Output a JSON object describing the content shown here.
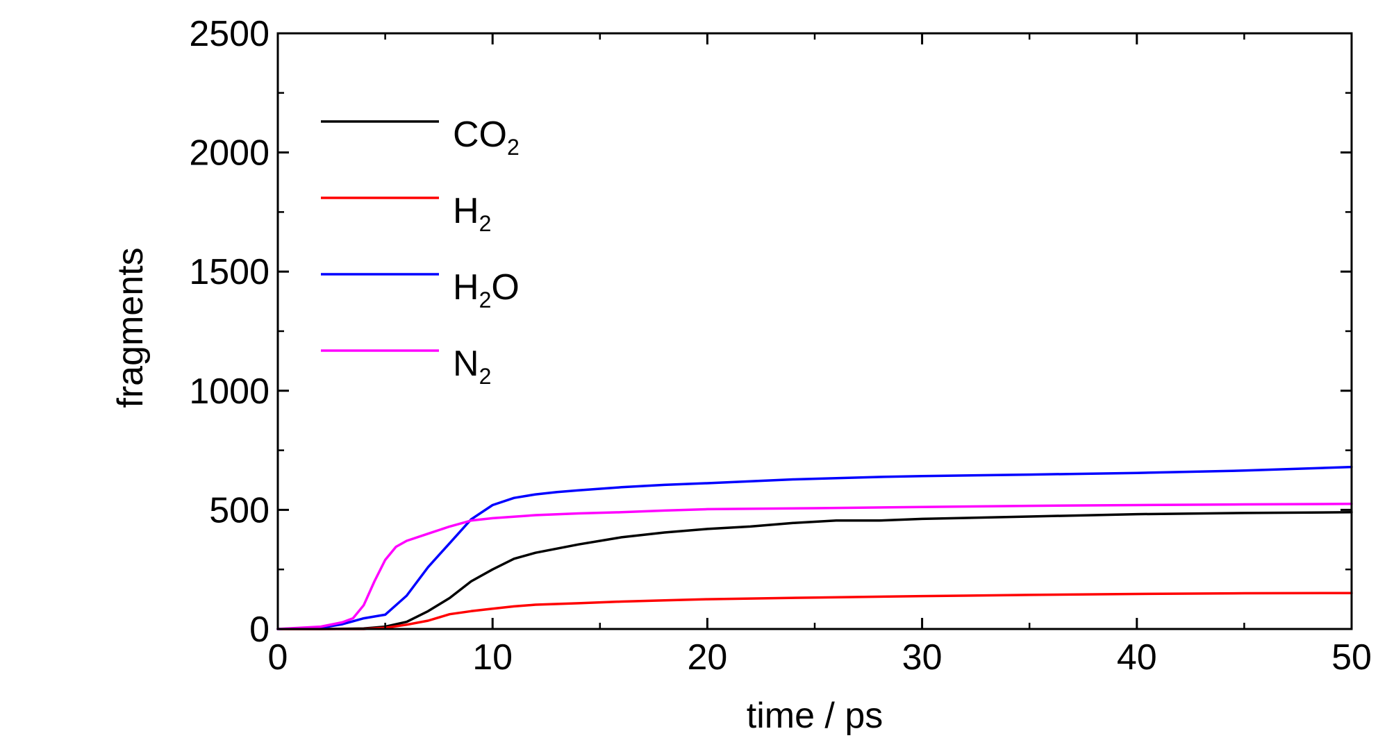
{
  "chart_data": {
    "type": "line",
    "xlabel": "time / ps",
    "ylabel": "fragments",
    "xlim": [
      0,
      50
    ],
    "ylim": [
      0,
      2500
    ],
    "xticks": [
      "0",
      "10",
      "20",
      "30",
      "40",
      "50"
    ],
    "yticks": [
      "0",
      "500",
      "1000",
      "1500",
      "2000",
      "2500"
    ],
    "grid": false,
    "legend_position": "top-left",
    "series": [
      {
        "key": "co2",
        "name": "CO2",
        "label_main": "CO",
        "label_sub": "2",
        "label_tail": "",
        "color": "#000000",
        "points": [
          [
            0,
            0
          ],
          [
            2,
            0
          ],
          [
            4,
            2
          ],
          [
            5,
            10
          ],
          [
            6,
            30
          ],
          [
            7,
            75
          ],
          [
            8,
            130
          ],
          [
            9,
            200
          ],
          [
            10,
            250
          ],
          [
            11,
            295
          ],
          [
            12,
            320
          ],
          [
            14,
            355
          ],
          [
            16,
            385
          ],
          [
            18,
            405
          ],
          [
            20,
            420
          ],
          [
            22,
            430
          ],
          [
            24,
            445
          ],
          [
            26,
            455
          ],
          [
            28,
            455
          ],
          [
            30,
            462
          ],
          [
            35,
            472
          ],
          [
            40,
            482
          ],
          [
            45,
            487
          ],
          [
            50,
            490
          ]
        ]
      },
      {
        "key": "h2",
        "name": "H2",
        "label_main": "H",
        "label_sub": "2",
        "label_tail": "",
        "color": "#ff0000",
        "points": [
          [
            0,
            0
          ],
          [
            4,
            0
          ],
          [
            5,
            5
          ],
          [
            6,
            18
          ],
          [
            7,
            35
          ],
          [
            8,
            62
          ],
          [
            9,
            75
          ],
          [
            10,
            85
          ],
          [
            11,
            95
          ],
          [
            12,
            102
          ],
          [
            14,
            108
          ],
          [
            16,
            115
          ],
          [
            18,
            120
          ],
          [
            20,
            125
          ],
          [
            25,
            132
          ],
          [
            30,
            138
          ],
          [
            35,
            143
          ],
          [
            40,
            147
          ],
          [
            45,
            150
          ],
          [
            50,
            151
          ]
        ]
      },
      {
        "key": "h2o",
        "name": "H2O",
        "label_main": "H",
        "label_sub": "2",
        "label_tail": "O",
        "color": "#0000ff",
        "points": [
          [
            0,
            0
          ],
          [
            2,
            5
          ],
          [
            3,
            20
          ],
          [
            4,
            45
          ],
          [
            5,
            60
          ],
          [
            6,
            140
          ],
          [
            7,
            260
          ],
          [
            8,
            360
          ],
          [
            9,
            460
          ],
          [
            10,
            520
          ],
          [
            11,
            550
          ],
          [
            12,
            565
          ],
          [
            13,
            575
          ],
          [
            14,
            582
          ],
          [
            16,
            595
          ],
          [
            18,
            605
          ],
          [
            20,
            612
          ],
          [
            22,
            620
          ],
          [
            24,
            628
          ],
          [
            26,
            633
          ],
          [
            28,
            638
          ],
          [
            30,
            642
          ],
          [
            35,
            648
          ],
          [
            40,
            655
          ],
          [
            45,
            665
          ],
          [
            50,
            680
          ]
        ]
      },
      {
        "key": "n2",
        "name": "N2",
        "label_main": "N",
        "label_sub": "2",
        "label_tail": "",
        "color": "#ff00ff",
        "points": [
          [
            0,
            0
          ],
          [
            2,
            10
          ],
          [
            3,
            28
          ],
          [
            3.5,
            45
          ],
          [
            4,
            100
          ],
          [
            4.5,
            200
          ],
          [
            5,
            290
          ],
          [
            5.5,
            345
          ],
          [
            6,
            370
          ],
          [
            7,
            400
          ],
          [
            8,
            430
          ],
          [
            9,
            455
          ],
          [
            10,
            465
          ],
          [
            12,
            478
          ],
          [
            14,
            485
          ],
          [
            16,
            490
          ],
          [
            18,
            497
          ],
          [
            20,
            503
          ],
          [
            25,
            507
          ],
          [
            30,
            512
          ],
          [
            35,
            517
          ],
          [
            40,
            520
          ],
          [
            45,
            523
          ],
          [
            50,
            525
          ]
        ]
      }
    ]
  }
}
